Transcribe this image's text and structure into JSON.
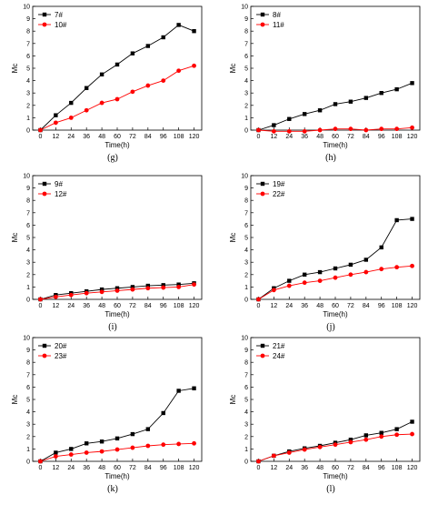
{
  "chart_data": [
    {
      "type": "line",
      "caption": "(g)",
      "xlabel": "Time(h)",
      "ylabel": "Mc",
      "xticks": [
        0,
        12,
        24,
        36,
        48,
        60,
        72,
        84,
        96,
        108,
        120
      ],
      "yticks": [
        0,
        1,
        2,
        3,
        4,
        5,
        6,
        7,
        8,
        9,
        10
      ],
      "xlim": [
        -6,
        126
      ],
      "ylim": [
        0,
        10
      ],
      "legend_position": "top-left",
      "x": [
        0,
        12,
        24,
        36,
        48,
        60,
        72,
        84,
        96,
        108,
        120
      ],
      "series": [
        {
          "name": "7#",
          "color": "#000000",
          "marker": "square",
          "values": [
            0,
            1.2,
            2.2,
            3.4,
            4.5,
            5.3,
            6.2,
            6.8,
            7.5,
            8.5,
            8.0
          ]
        },
        {
          "name": "10#",
          "color": "#ff0000",
          "marker": "circle",
          "values": [
            0,
            0.6,
            1.0,
            1.6,
            2.2,
            2.5,
            3.1,
            3.6,
            4.0,
            4.8,
            5.2
          ]
        }
      ]
    },
    {
      "type": "line",
      "caption": "(h)",
      "xlabel": "Time(h)",
      "ylabel": "Mc",
      "xticks": [
        0,
        12,
        24,
        36,
        48,
        60,
        72,
        84,
        96,
        108,
        120
      ],
      "yticks": [
        0,
        1,
        2,
        3,
        4,
        5,
        6,
        7,
        8,
        9,
        10
      ],
      "xlim": [
        -6,
        126
      ],
      "ylim": [
        0,
        10
      ],
      "legend_position": "top-left",
      "x": [
        0,
        12,
        24,
        36,
        48,
        60,
        72,
        84,
        96,
        108,
        120
      ],
      "series": [
        {
          "name": "8#",
          "color": "#000000",
          "marker": "square",
          "values": [
            0,
            0.4,
            0.9,
            1.3,
            1.6,
            2.1,
            2.3,
            2.6,
            3.0,
            3.3,
            3.8
          ]
        },
        {
          "name": "11#",
          "color": "#ff0000",
          "marker": "circle",
          "values": [
            0,
            -0.1,
            -0.1,
            -0.1,
            0.0,
            0.1,
            0.1,
            0.0,
            0.1,
            0.1,
            0.2
          ]
        }
      ]
    },
    {
      "type": "line",
      "caption": "(i)",
      "xlabel": "Time(h)",
      "ylabel": "Mc",
      "xticks": [
        0,
        12,
        24,
        36,
        48,
        60,
        72,
        84,
        96,
        108,
        120
      ],
      "yticks": [
        0,
        1,
        2,
        3,
        4,
        5,
        6,
        7,
        8,
        9,
        10
      ],
      "xlim": [
        -6,
        126
      ],
      "ylim": [
        0,
        10
      ],
      "legend_position": "top-left",
      "x": [
        0,
        12,
        24,
        36,
        48,
        60,
        72,
        84,
        96,
        108,
        120
      ],
      "series": [
        {
          "name": "9#",
          "color": "#000000",
          "marker": "square",
          "values": [
            0,
            0.35,
            0.5,
            0.65,
            0.8,
            0.9,
            1.0,
            1.1,
            1.15,
            1.2,
            1.3
          ]
        },
        {
          "name": "12#",
          "color": "#ff0000",
          "marker": "circle",
          "values": [
            0,
            0.2,
            0.35,
            0.5,
            0.6,
            0.7,
            0.8,
            0.9,
            0.95,
            1.0,
            1.2
          ]
        }
      ]
    },
    {
      "type": "line",
      "caption": "(j)",
      "xlabel": "Time(h)",
      "ylabel": "Mc",
      "xticks": [
        0,
        12,
        24,
        36,
        48,
        60,
        72,
        84,
        96,
        108,
        120
      ],
      "yticks": [
        0,
        1,
        2,
        3,
        4,
        5,
        6,
        7,
        8,
        9,
        10
      ],
      "xlim": [
        -6,
        126
      ],
      "ylim": [
        0,
        10
      ],
      "legend_position": "top-left",
      "x": [
        0,
        12,
        24,
        36,
        48,
        60,
        72,
        84,
        96,
        108,
        120
      ],
      "series": [
        {
          "name": "19#",
          "color": "#000000",
          "marker": "square",
          "values": [
            0,
            0.9,
            1.5,
            2.0,
            2.2,
            2.5,
            2.8,
            3.2,
            4.2,
            6.4,
            6.5
          ]
        },
        {
          "name": "22#",
          "color": "#ff0000",
          "marker": "circle",
          "values": [
            0,
            0.75,
            1.1,
            1.35,
            1.5,
            1.75,
            2.0,
            2.2,
            2.45,
            2.6,
            2.7
          ]
        }
      ]
    },
    {
      "type": "line",
      "caption": "(k)",
      "xlabel": "Time(h)",
      "ylabel": "Mc",
      "xticks": [
        0,
        12,
        24,
        36,
        48,
        60,
        72,
        84,
        96,
        108,
        120
      ],
      "yticks": [
        0,
        1,
        2,
        3,
        4,
        5,
        6,
        7,
        8,
        9,
        10
      ],
      "xlim": [
        -6,
        126
      ],
      "ylim": [
        0,
        10
      ],
      "legend_position": "top-left",
      "x": [
        0,
        12,
        24,
        36,
        48,
        60,
        72,
        84,
        96,
        108,
        120
      ],
      "series": [
        {
          "name": "20#",
          "color": "#000000",
          "marker": "square",
          "values": [
            0,
            0.7,
            1.0,
            1.45,
            1.6,
            1.85,
            2.2,
            2.6,
            3.9,
            5.7,
            5.9
          ]
        },
        {
          "name": "23#",
          "color": "#ff0000",
          "marker": "circle",
          "values": [
            0,
            0.4,
            0.55,
            0.7,
            0.8,
            0.95,
            1.1,
            1.25,
            1.35,
            1.4,
            1.45
          ]
        }
      ]
    },
    {
      "type": "line",
      "caption": "(l)",
      "xlabel": "Time(h)",
      "ylabel": "Mc",
      "xticks": [
        0,
        12,
        24,
        36,
        48,
        60,
        72,
        84,
        96,
        108,
        120
      ],
      "yticks": [
        0,
        1,
        2,
        3,
        4,
        5,
        6,
        7,
        8,
        9,
        10
      ],
      "xlim": [
        -6,
        126
      ],
      "ylim": [
        0,
        10
      ],
      "legend_position": "top-left",
      "x": [
        0,
        12,
        24,
        36,
        48,
        60,
        72,
        84,
        96,
        108,
        120
      ],
      "series": [
        {
          "name": "21#",
          "color": "#000000",
          "marker": "square",
          "values": [
            0,
            0.45,
            0.8,
            1.05,
            1.25,
            1.5,
            1.75,
            2.1,
            2.3,
            2.6,
            3.2
          ]
        },
        {
          "name": "24#",
          "color": "#ff0000",
          "marker": "circle",
          "values": [
            0,
            0.45,
            0.7,
            0.95,
            1.15,
            1.35,
            1.55,
            1.75,
            2.0,
            2.15,
            2.2
          ]
        }
      ]
    }
  ]
}
